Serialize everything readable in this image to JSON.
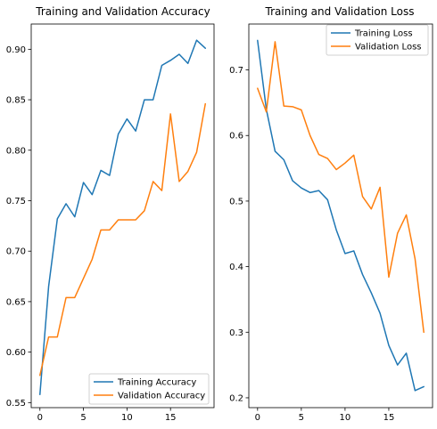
{
  "colors": {
    "training": "#1f77b4",
    "validation": "#ff7f0e",
    "axis": "#000000"
  },
  "chart_data": [
    {
      "type": "line",
      "title": "Training and Validation Accuracy",
      "xlabel": "",
      "ylabel": "",
      "xlim": [
        -1,
        20
      ],
      "ylim": [
        0.545,
        0.925
      ],
      "xticks": [
        0,
        5,
        10,
        15
      ],
      "yticks": [
        0.55,
        0.6,
        0.65,
        0.7,
        0.75,
        0.8,
        0.85,
        0.9
      ],
      "ytick_labels": [
        "0.55",
        "0.60",
        "0.65",
        "0.70",
        "0.75",
        "0.80",
        "0.85",
        "0.90"
      ],
      "legend_position": "lower-right",
      "grid": false,
      "x": [
        0,
        1,
        2,
        3,
        4,
        5,
        6,
        7,
        8,
        9,
        10,
        11,
        12,
        13,
        14,
        15,
        16,
        17,
        18,
        19
      ],
      "series": [
        {
          "name": "Training Accuracy",
          "color": "#1f77b4",
          "values": [
            0.558,
            0.665,
            0.732,
            0.747,
            0.734,
            0.768,
            0.756,
            0.78,
            0.775,
            0.816,
            0.831,
            0.819,
            0.85,
            0.85,
            0.884,
            0.889,
            0.895,
            0.886,
            0.909,
            0.901
          ]
        },
        {
          "name": "Validation Accuracy",
          "color": "#ff7f0e",
          "values": [
            0.577,
            0.615,
            0.615,
            0.654,
            0.654,
            0.673,
            0.692,
            0.721,
            0.721,
            0.731,
            0.731,
            0.731,
            0.74,
            0.769,
            0.76,
            0.836,
            0.769,
            0.779,
            0.798,
            0.846
          ]
        }
      ]
    },
    {
      "type": "line",
      "title": "Training and Validation Loss",
      "xlabel": "",
      "ylabel": "",
      "xlim": [
        -1,
        20
      ],
      "ylim": [
        0.185,
        0.77
      ],
      "xticks": [
        0,
        5,
        10,
        15
      ],
      "yticks": [
        0.2,
        0.3,
        0.4,
        0.5,
        0.6,
        0.7
      ],
      "ytick_labels": [
        "0.2",
        "0.3",
        "0.4",
        "0.5",
        "0.6",
        "0.7"
      ],
      "legend_position": "top-right",
      "grid": false,
      "x": [
        0,
        1,
        2,
        3,
        4,
        5,
        6,
        7,
        8,
        9,
        10,
        11,
        12,
        13,
        14,
        15,
        16,
        17,
        18,
        19
      ],
      "series": [
        {
          "name": "Training Loss",
          "color": "#1f77b4",
          "values": [
            0.745,
            0.64,
            0.576,
            0.563,
            0.531,
            0.52,
            0.513,
            0.516,
            0.502,
            0.456,
            0.42,
            0.424,
            0.388,
            0.36,
            0.329,
            0.28,
            0.25,
            0.268,
            0.211,
            0.217
          ]
        },
        {
          "name": "Validation Loss",
          "color": "#ff7f0e",
          "values": [
            0.672,
            0.636,
            0.743,
            0.645,
            0.644,
            0.639,
            0.6,
            0.571,
            0.565,
            0.548,
            0.558,
            0.57,
            0.507,
            0.488,
            0.521,
            0.384,
            0.451,
            0.479,
            0.412,
            0.3
          ]
        }
      ]
    }
  ]
}
